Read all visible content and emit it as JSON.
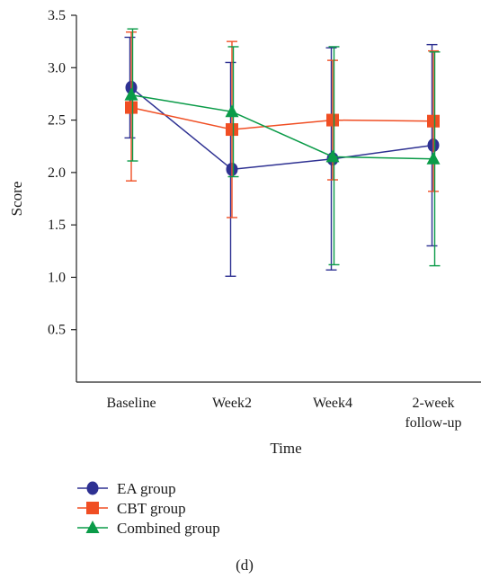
{
  "chart_data": {
    "type": "line",
    "xlabel": "Time",
    "ylabel": "Score",
    "ylim": [
      0,
      3.5
    ],
    "yticks": [
      0.5,
      1.0,
      1.5,
      2.0,
      2.5,
      3.0,
      3.5
    ],
    "ytick_labels": [
      "0.5",
      "1.0",
      "1.5",
      "2.0",
      "2.5",
      "3.0",
      "3.5"
    ],
    "categories": [
      "Baseline",
      "Week2",
      "Week4",
      "2-week follow-up"
    ],
    "category_lines": [
      [
        "Baseline"
      ],
      [
        "Week2"
      ],
      [
        "Week4"
      ],
      [
        "2-week",
        "follow-up"
      ]
    ],
    "series": [
      {
        "name": "EA group",
        "marker": "circle",
        "color": "#2e3192",
        "values": [
          2.81,
          2.03,
          2.13,
          2.26
        ],
        "err_low": [
          2.33,
          1.01,
          1.07,
          1.3
        ],
        "err_high": [
          3.29,
          3.05,
          3.19,
          3.22
        ]
      },
      {
        "name": "CBT group",
        "marker": "square",
        "color": "#f04e23",
        "values": [
          2.62,
          2.41,
          2.5,
          2.49
        ],
        "err_low": [
          1.92,
          1.57,
          1.93,
          1.82
        ],
        "err_high": [
          3.34,
          3.25,
          3.07,
          3.16
        ]
      },
      {
        "name": "Combined group",
        "marker": "triangle",
        "color": "#0a9b48",
        "values": [
          2.74,
          2.58,
          2.15,
          2.13
        ],
        "err_low": [
          2.11,
          1.96,
          1.12,
          1.11
        ],
        "err_high": [
          3.37,
          3.2,
          3.2,
          3.15
        ]
      }
    ],
    "legend_position": "bottom-left",
    "grid": false
  },
  "caption": "(d)"
}
